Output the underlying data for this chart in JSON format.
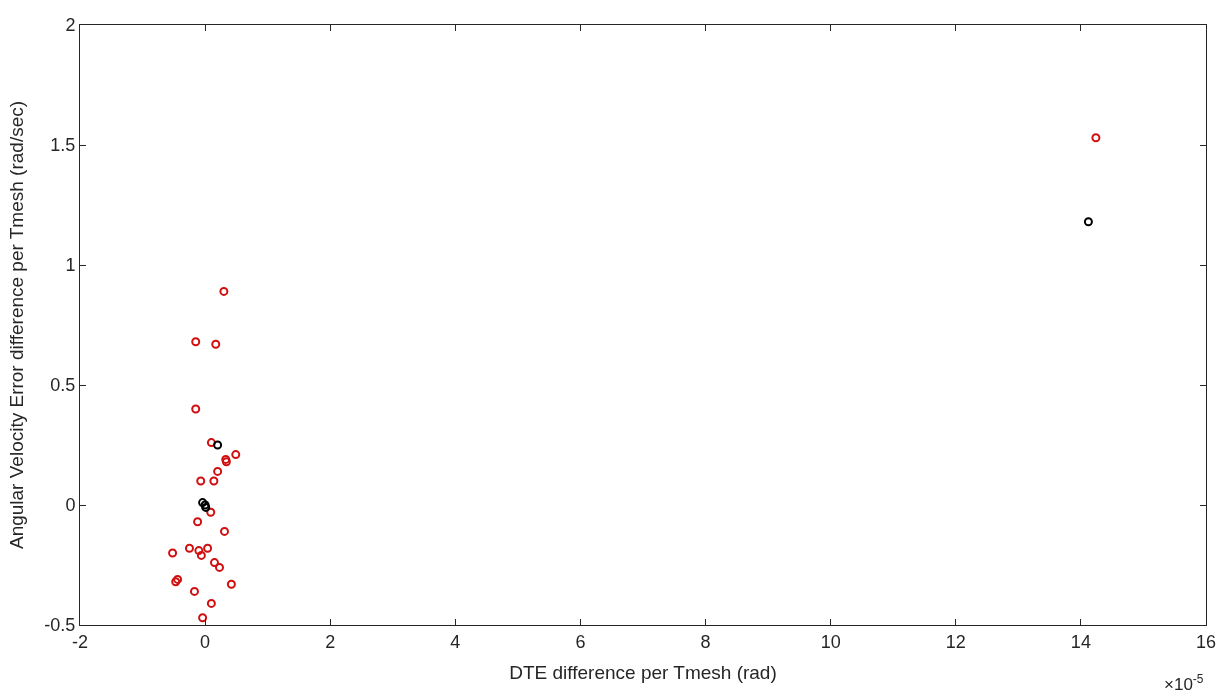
{
  "chart_data": {
    "type": "scatter",
    "xlabel": "DTE difference per Tmesh (rad)",
    "ylabel": "Angular Velocity Error difference per Tmesh (rad/sec)",
    "annotations": [
      "×10$^{-5}$"
    ],
    "series": [
      {
        "color": "#d01010",
        "x": [
          0.3,
          -0.15,
          0.17,
          -0.15,
          0.1,
          0.49,
          0.33,
          0.34,
          0.2,
          -0.07,
          0.14,
          0.09,
          -0.12,
          0.31,
          -0.52,
          -0.25,
          -0.1,
          -0.06,
          0.04,
          0.15,
          0.23,
          -0.47,
          -0.44,
          0.42,
          -0.17,
          0.1,
          -0.04,
          14.24
        ],
        "values": [
          0.89,
          0.68,
          0.67,
          0.4,
          0.26,
          0.21,
          0.19,
          0.18,
          0.14,
          0.1,
          0.1,
          -0.03,
          -0.07,
          -0.11,
          -0.2,
          -0.18,
          -0.19,
          -0.21,
          -0.18,
          -0.24,
          -0.26,
          -0.32,
          -0.31,
          -0.33,
          -0.36,
          -0.41,
          -0.47,
          1.53
        ]
      },
      {
        "color": "#000000",
        "x": [
          0.2,
          -0.04,
          0.0,
          0.01,
          14.12
        ],
        "values": [
          0.25,
          0.01,
          0.0,
          -0.01,
          1.18
        ]
      }
    ],
    "xlim": [
      -2,
      16
    ],
    "xticks": [
      -2,
      0,
      2,
      4,
      6,
      8,
      10,
      12,
      14,
      16
    ],
    "ylim": [
      -0.5,
      2
    ],
    "yticks": [
      -0.5,
      0,
      0.5,
      1,
      1.5,
      2
    ],
    "marker": "circle"
  }
}
